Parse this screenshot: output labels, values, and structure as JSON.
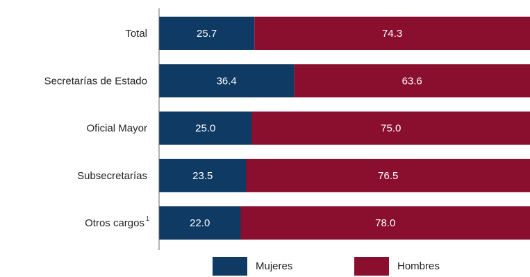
{
  "chart_data": {
    "type": "bar",
    "orientation": "horizontal",
    "stacked": true,
    "categories": [
      "Total",
      "Secretarías de Estado",
      "Oficial Mayor",
      "Subsecretarías",
      "Otros cargos"
    ],
    "category_superscripts": [
      "",
      "",
      "",
      "",
      "1"
    ],
    "series": [
      {
        "name": "Mujeres",
        "color": "#0e3a63",
        "values": [
          25.7,
          36.4,
          25.0,
          23.5,
          22.0
        ],
        "labels": [
          "25.7",
          "36.4",
          "25.0",
          "23.5",
          "22.0"
        ]
      },
      {
        "name": "Hombres",
        "color": "#8a0f2e",
        "values": [
          74.3,
          63.6,
          75.0,
          76.5,
          78.0
        ],
        "labels": [
          "74.3",
          "63.6",
          "75.0",
          "76.5",
          "78.0"
        ]
      }
    ],
    "xlim": [
      0,
      100
    ],
    "grid": false,
    "legend_position": "bottom"
  }
}
